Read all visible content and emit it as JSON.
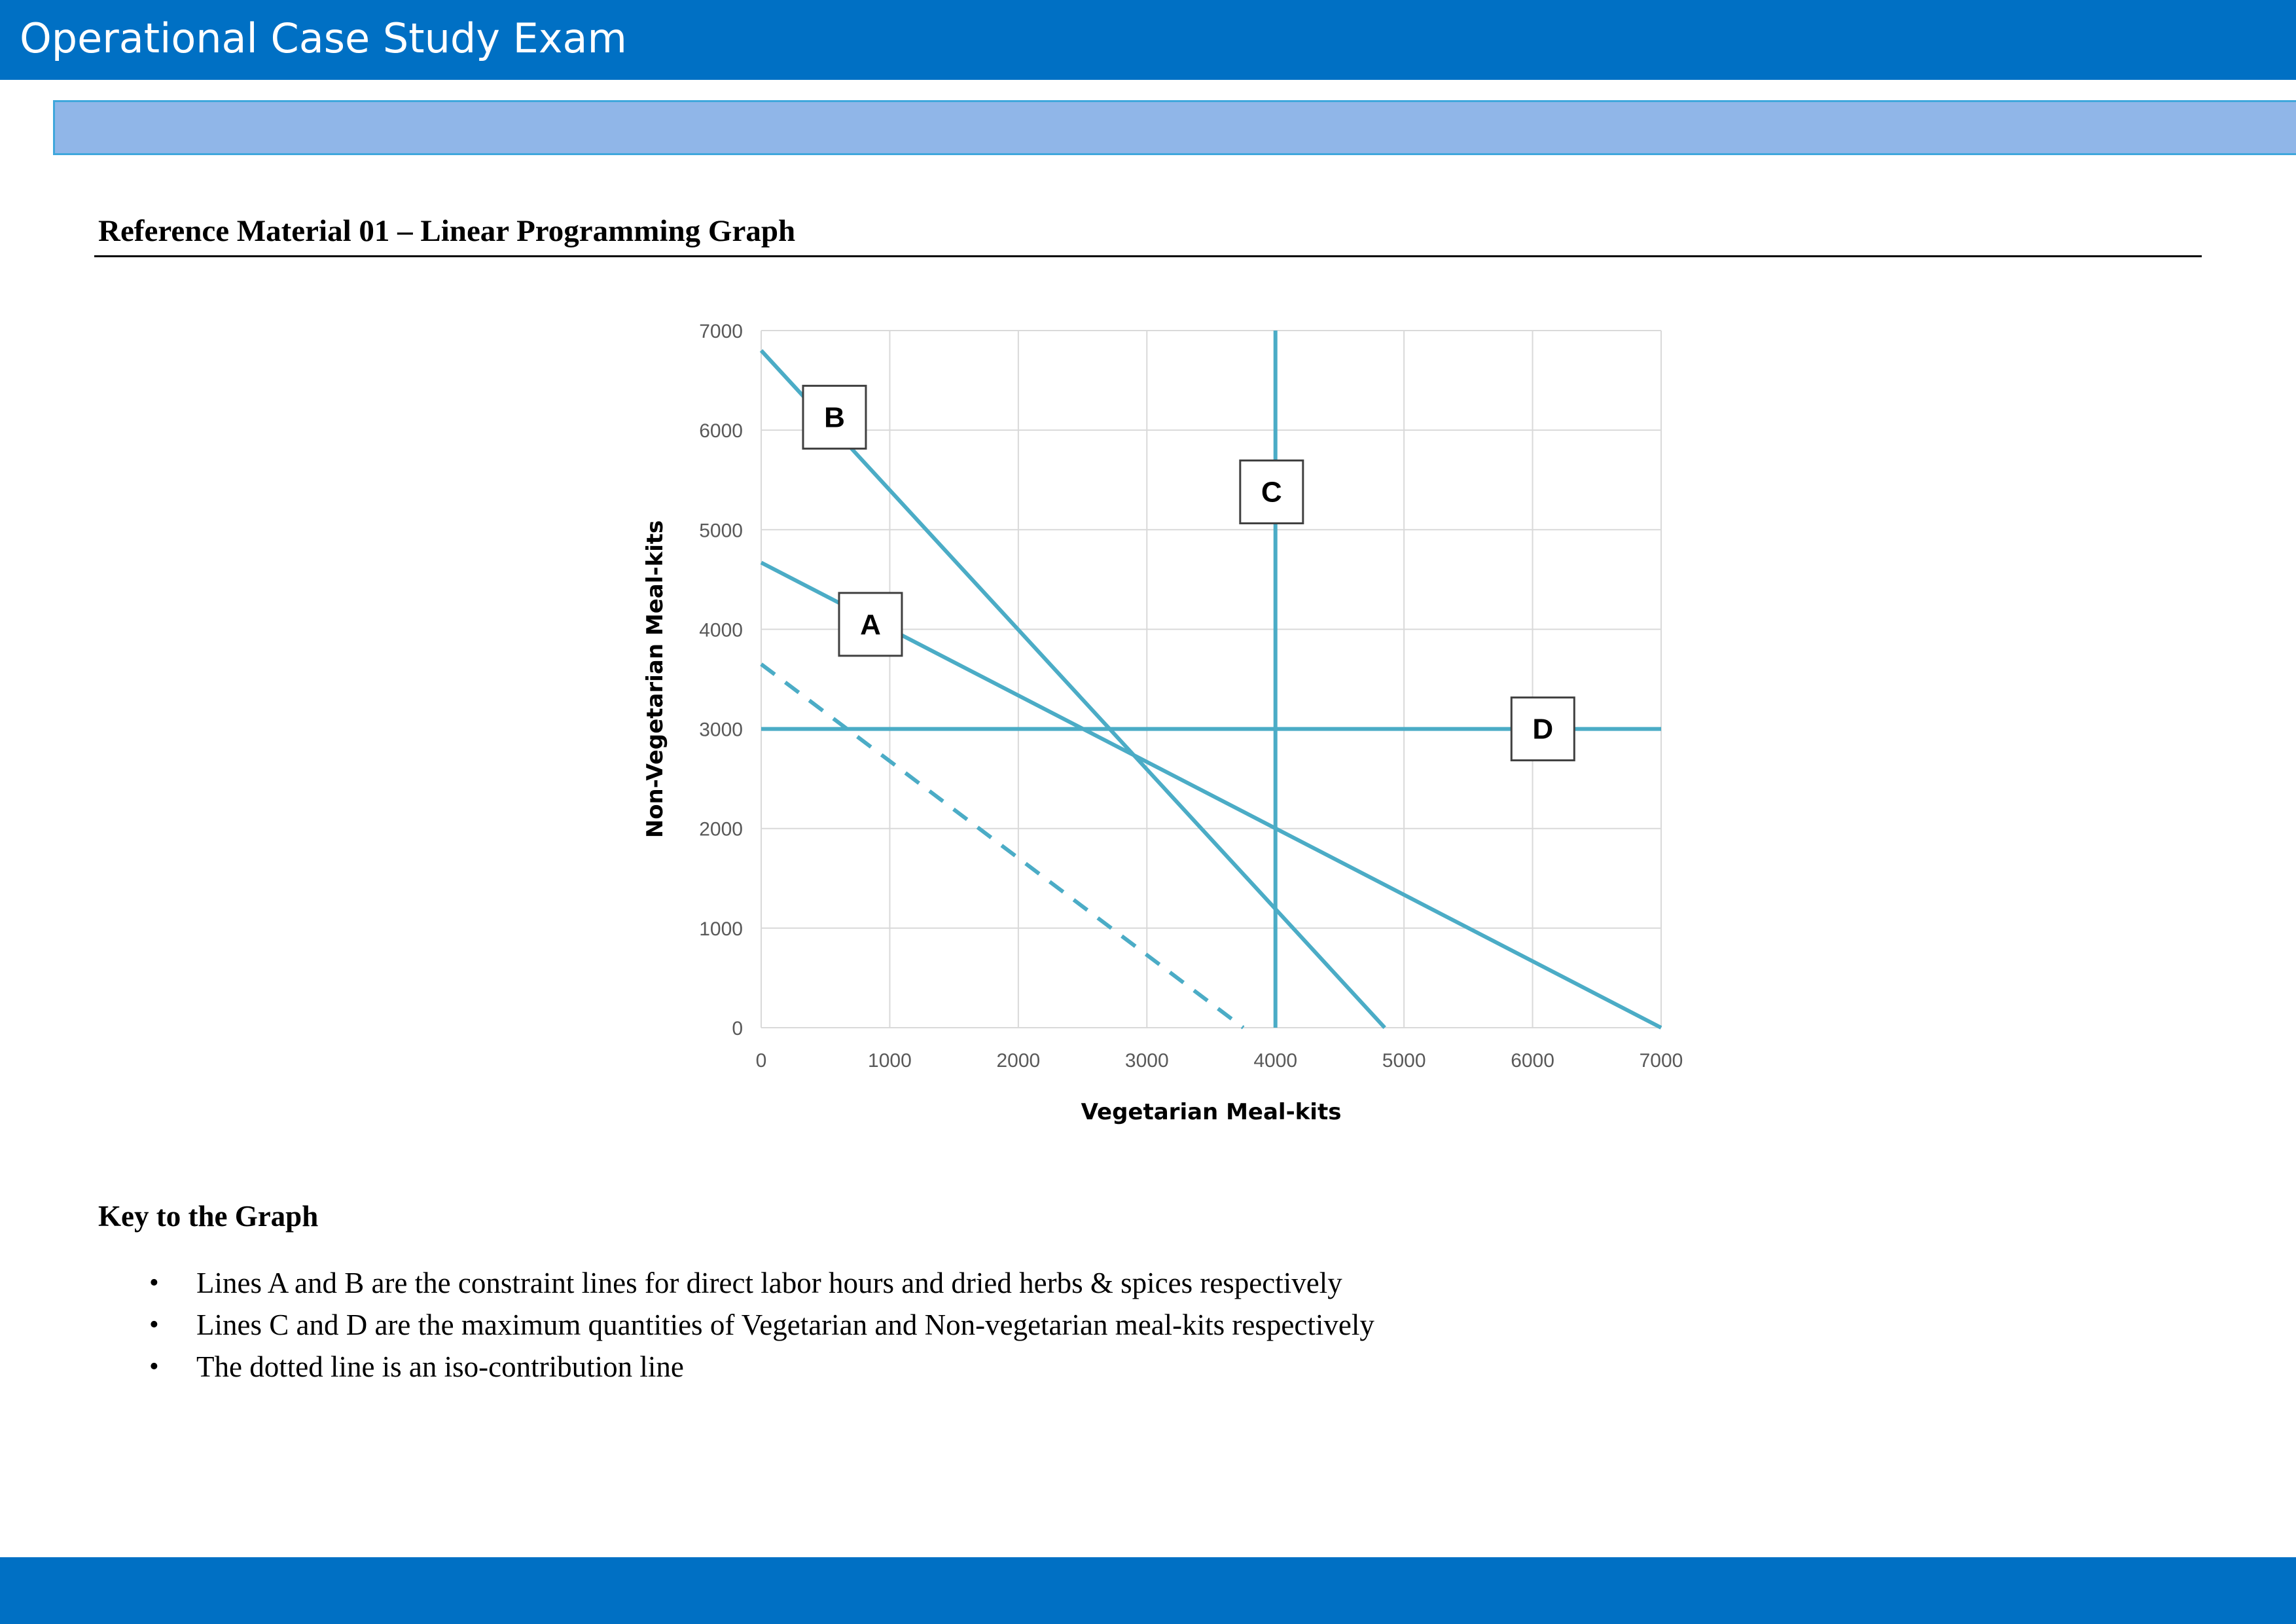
{
  "header": {
    "title": "Operational Case Study Exam"
  },
  "section": {
    "heading": "Reference Material 01 – Linear Programming Graph"
  },
  "chart_data": {
    "type": "line",
    "xlabel": "Vegetarian Meal-kits",
    "ylabel": "Non-Vegetarian Meal-kits",
    "xlim": [
      0,
      7000
    ],
    "ylim": [
      0,
      7000
    ],
    "x_ticks": [
      0,
      1000,
      2000,
      3000,
      4000,
      5000,
      6000,
      7000
    ],
    "y_ticks": [
      0,
      1000,
      2000,
      3000,
      4000,
      5000,
      6000,
      7000
    ],
    "grid": true,
    "line_color": "#4bacc6",
    "series": [
      {
        "name": "A",
        "x": [
          0,
          7000
        ],
        "y": [
          4670,
          0
        ],
        "dashed": false,
        "label_at": [
          850,
          4050
        ]
      },
      {
        "name": "B",
        "x": [
          0,
          4850
        ],
        "y": [
          6800,
          0
        ],
        "dashed": false,
        "label_at": [
          570,
          6130
        ]
      },
      {
        "name": "C",
        "x": [
          4000,
          4000
        ],
        "y": [
          0,
          7000
        ],
        "dashed": false,
        "label_at": [
          3970,
          5380
        ]
      },
      {
        "name": "D",
        "x": [
          0,
          7000
        ],
        "y": [
          3000,
          3000
        ],
        "dashed": false,
        "label_at": [
          6080,
          3000
        ]
      },
      {
        "name": "",
        "x": [
          0,
          3750
        ],
        "y": [
          3650,
          0
        ],
        "dashed": true
      }
    ]
  },
  "key": {
    "heading": "Key to the Graph",
    "items": [
      "Lines A and B are the constraint lines for direct labor hours and dried herbs & spices respectively",
      "Lines C and D are the maximum quantities of Vegetarian and Non-vegetarian meal-kits respectively",
      "The dotted line is an iso-contribution line"
    ],
    "bullet": "•"
  },
  "colors": {
    "banner": "#0070c4",
    "sub_banner": "#90b6e8",
    "sub_banner_border": "#3fa7dc"
  }
}
